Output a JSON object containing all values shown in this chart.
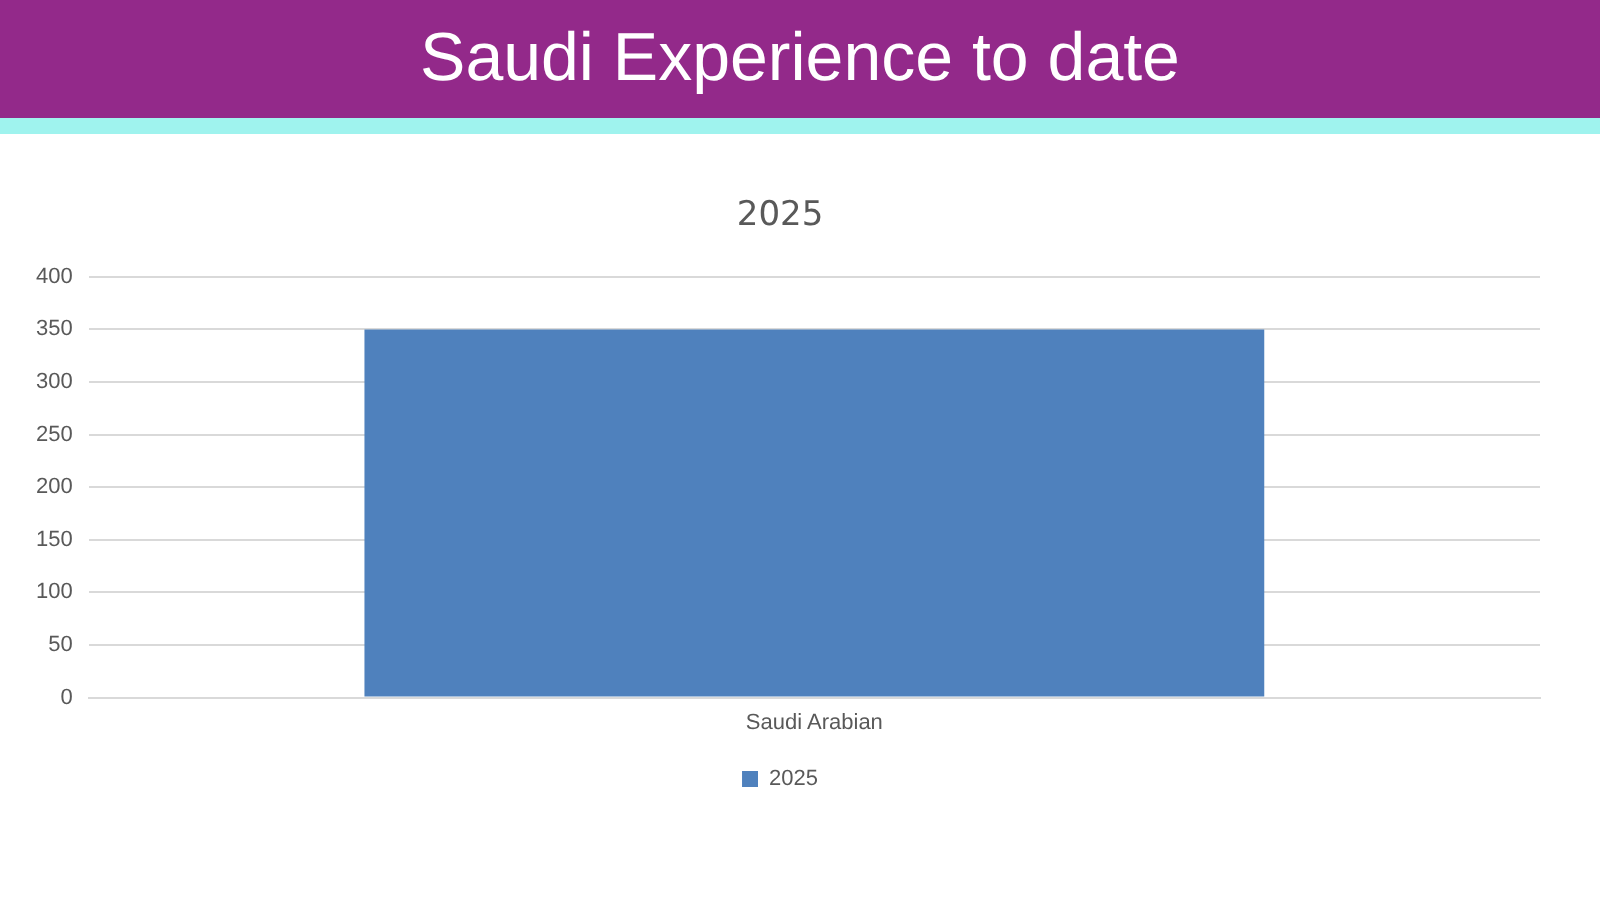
{
  "chart_data": {
    "type": "bar",
    "title": "Saudi Experience to date",
    "subtitle": "2025",
    "categories": [
      "Saudi Arabian"
    ],
    "series": [
      {
        "name": "2025",
        "color": "#4f81bd",
        "values": [
          350
        ]
      }
    ],
    "ylim": [
      0,
      400
    ],
    "yticks": [
      0,
      50,
      100,
      150,
      200,
      250,
      300,
      350,
      400
    ],
    "grid": "y",
    "legend": "bottom"
  }
}
